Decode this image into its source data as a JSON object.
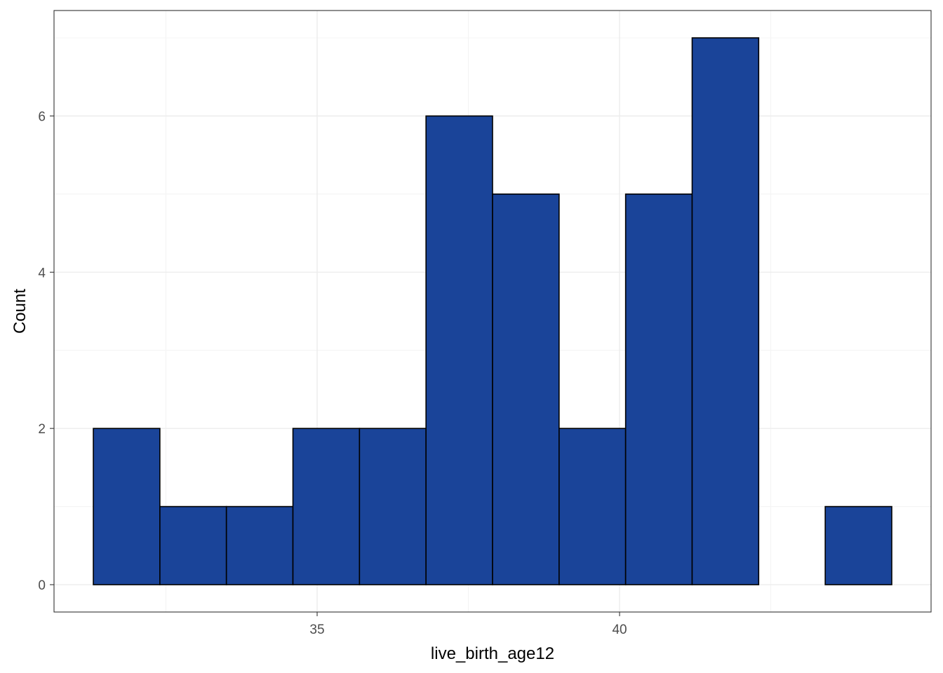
{
  "chart_data": {
    "type": "bar",
    "title": "",
    "xlabel": "live_birth_age12",
    "ylabel": "Count",
    "bin_width": 1.1,
    "bins": [
      {
        "x_start": 31.3,
        "x_end": 32.4,
        "count": 2
      },
      {
        "x_start": 32.4,
        "x_end": 33.5,
        "count": 1
      },
      {
        "x_start": 33.5,
        "x_end": 34.6,
        "count": 1
      },
      {
        "x_start": 34.6,
        "x_end": 35.7,
        "count": 2
      },
      {
        "x_start": 35.7,
        "x_end": 36.8,
        "count": 2
      },
      {
        "x_start": 36.8,
        "x_end": 37.9,
        "count": 6
      },
      {
        "x_start": 37.9,
        "x_end": 39.0,
        "count": 5
      },
      {
        "x_start": 39.0,
        "x_end": 40.1,
        "count": 2
      },
      {
        "x_start": 40.1,
        "x_end": 41.2,
        "count": 5
      },
      {
        "x_start": 41.2,
        "x_end": 42.3,
        "count": 7
      },
      {
        "x_start": 42.3,
        "x_end": 43.4,
        "count": 0
      },
      {
        "x_start": 43.4,
        "x_end": 44.5,
        "count": 1
      }
    ],
    "xlim": [
      30.65,
      45.15
    ],
    "ylim": [
      -0.35,
      7.35
    ],
    "x_ticks": [
      {
        "value": 35,
        "label": "35"
      },
      {
        "value": 40,
        "label": "40"
      }
    ],
    "y_ticks": [
      {
        "value": 0,
        "label": "0"
      },
      {
        "value": 2,
        "label": "2"
      },
      {
        "value": 4,
        "label": "4"
      },
      {
        "value": 6,
        "label": "6"
      }
    ],
    "x_minor_gridlines": [
      32.5,
      37.5,
      42.5
    ],
    "y_minor_gridlines": [
      1,
      3,
      5,
      7
    ],
    "grid": true,
    "legend": "none",
    "colors": {
      "bar_fill": "#1A4499",
      "bar_outline": "#000000",
      "grid_major": "#EBEBEB",
      "grid_minor": "#F4F4F4",
      "panel_border": "#333333",
      "tick_label": "#4D4D4D"
    }
  }
}
